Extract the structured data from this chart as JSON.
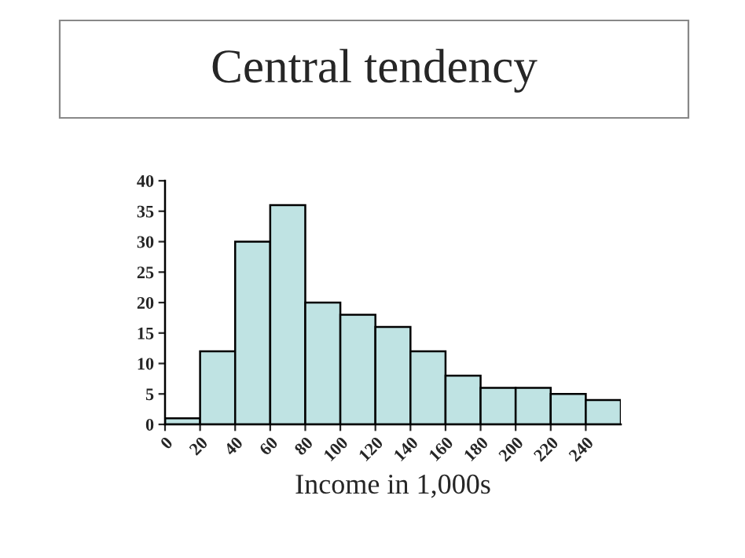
{
  "chart_data": {
    "type": "histogram",
    "title": "Central tendency",
    "xlabel": "Income in 1,000s",
    "bins": [
      0,
      20,
      40,
      60,
      80,
      100,
      120,
      140,
      160,
      180,
      200,
      220,
      240,
      260
    ],
    "values": [
      1,
      12,
      30,
      36,
      20,
      18,
      16,
      12,
      8,
      6,
      6,
      5,
      4
    ],
    "color": "#bfe3e3",
    "xlim": [
      0,
      260
    ],
    "xticks": [
      0,
      20,
      40,
      60,
      80,
      100,
      120,
      140,
      160,
      180,
      200,
      220,
      240
    ],
    "ylim": [
      0,
      40
    ],
    "yticks": [
      0,
      5,
      10,
      15,
      20,
      25,
      30,
      35,
      40
    ],
    "grid": false,
    "legend": false
  }
}
